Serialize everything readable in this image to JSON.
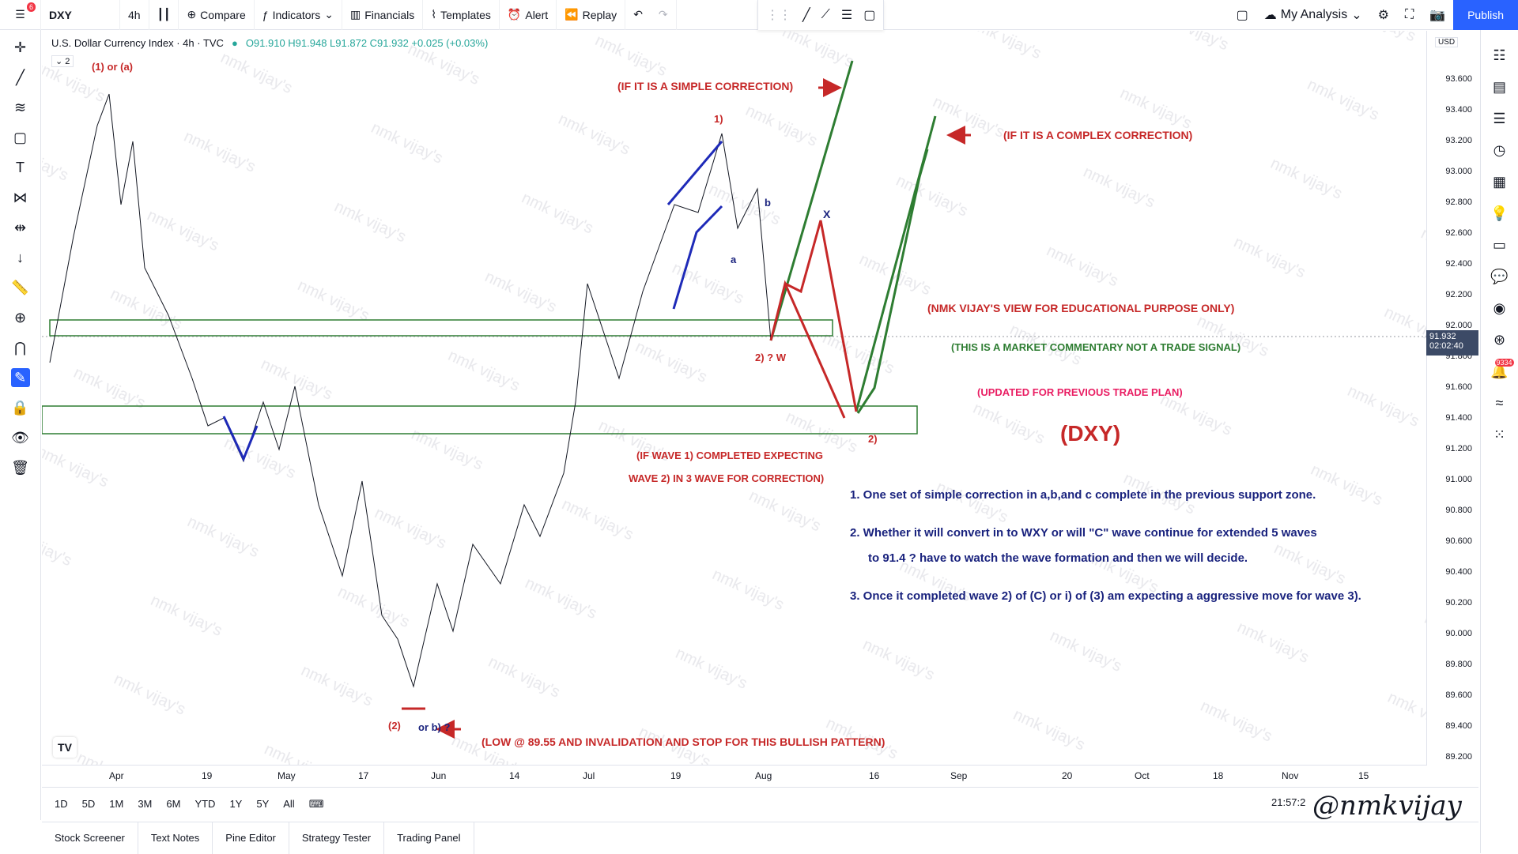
{
  "topbar": {
    "notif_count": "6",
    "symbol": "DXY",
    "interval": "4h",
    "compare": "Compare",
    "indicators": "Indicators",
    "financials": "Financials",
    "templates": "Templates",
    "alert": "Alert",
    "replay": "Replay",
    "layout": "My Analysis",
    "publish": "Publish"
  },
  "legend": {
    "title": "U.S. Dollar Currency Index · 4h · TVC",
    "ohlc": "O91.910 H91.948 L91.872 C91.932 +0.025 (+0.03%)",
    "layer": "2"
  },
  "price_axis": {
    "currency": "USD",
    "ticks": [
      "93.600",
      "93.400",
      "93.200",
      "93.000",
      "92.800",
      "92.600",
      "92.400",
      "92.200",
      "92.000",
      "91.800",
      "91.600",
      "91.400",
      "91.200",
      "91.000",
      "90.800",
      "90.600",
      "90.400",
      "90.200",
      "90.000",
      "89.800",
      "89.600",
      "89.400",
      "89.200"
    ],
    "current": "91.932",
    "countdown": "02:02:40"
  },
  "time_axis": {
    "ticks": [
      "Apr",
      "19",
      "May",
      "17",
      "Jun",
      "14",
      "Jul",
      "19",
      "Aug",
      "16",
      "Sep",
      "20",
      "Oct",
      "18",
      "Nov",
      "15"
    ]
  },
  "range_bar": {
    "ranges": [
      "1D",
      "5D",
      "1M",
      "3M",
      "6M",
      "YTD",
      "1Y",
      "5Y",
      "All"
    ],
    "clock": "21:57:2"
  },
  "bottom_tabs": [
    "Stock Screener",
    "Text Notes",
    "Pine Editor",
    "Strategy Tester",
    "Trading Panel"
  ],
  "right_badge": "9334",
  "annotations": {
    "top_label": "(1) or (a)",
    "simple_correction": "(IF IT IS A SIMPLE CORRECTION)",
    "complex_correction": "(IF IT IS A COMPLEX CORRECTION)",
    "edu": "(NMK VIJAY'S VIEW FOR EDUCATIONAL PURPOSE ONLY)",
    "commentary": "(THIS IS A MARKET COMMENTARY NOT A TRADE SIGNAL)",
    "updated": "(UPDATED FOR PREVIOUS TRADE PLAN)",
    "dxy": "(DXY)",
    "wave1_a": "(IF WAVE 1) COMPLETED EXPECTING",
    "wave1_b": "WAVE 2) IN 3 WAVE  FOR CORRECTION)",
    "point1": "1. One set of simple correction in a,b,and c complete in the previous support zone.",
    "point2a": "2. Whether it will convert in to WXY or will \"C\" wave continue for extended 5 waves",
    "point2b": "to 91.4 ? have to watch the wave formation and then we will decide.",
    "point3": "3. Once it completed wave 2) of (C) or i) of (3) am expecting a aggressive move for wave 3).",
    "low_note": "(LOW @ 89.55 AND INVALIDATION AND STOP FOR THIS BULLISH PATTERN)",
    "wave2_w": "2) ? W",
    "x_label": "X",
    "two_label": "2)",
    "b_label": "b",
    "a_label": "a",
    "one_label": "1)",
    "wave2_low": "(2)",
    "or_b": "or b) ?"
  },
  "watermark": "nmk vijay's",
  "signature": "@nmkvijay"
}
